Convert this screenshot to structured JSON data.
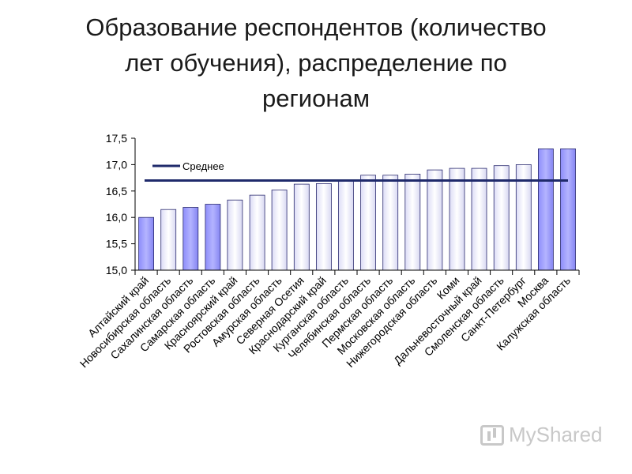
{
  "chart_data": {
    "type": "bar",
    "title": [
      "Образование респондентов (количество",
      "лет обучения), распределение по",
      "регионам"
    ],
    "categories": [
      "Алтайский край",
      "Новосибирская область",
      "Сахалинская область",
      "Самарская область",
      "Красноярский край",
      "Ростовская область",
      "Амурская область",
      "Северная Осетия",
      "Краснодарский край",
      "Курганская область",
      "Челябинская область",
      "Пермская область",
      "Московская область",
      "Нижегородская область",
      "Коми",
      "Дальневосточный край",
      "Смоленская область",
      "Санкт-Петербург",
      "Москва",
      "Калужская область"
    ],
    "values": [
      16.0,
      16.15,
      16.19,
      16.25,
      16.33,
      16.42,
      16.52,
      16.63,
      16.64,
      16.7,
      16.8,
      16.8,
      16.82,
      16.9,
      16.93,
      16.93,
      16.98,
      17.0,
      17.3,
      17.3
    ],
    "highlight": [
      true,
      false,
      true,
      true,
      false,
      false,
      false,
      false,
      false,
      false,
      false,
      false,
      false,
      false,
      false,
      false,
      false,
      false,
      true,
      true
    ],
    "average": {
      "name": "Среднее",
      "value": 16.7
    },
    "yticks": [
      "17,5",
      "17,0",
      "16,5",
      "16,0",
      "15,5",
      "15,0"
    ],
    "ytick_values": [
      17.5,
      17.0,
      16.5,
      16.0,
      15.5,
      15.0
    ],
    "ylim": [
      15.0,
      17.5
    ],
    "colors": {
      "highlight_bar": "#9999ff",
      "plain_bar": "#eeeefc",
      "average_line": "#1f2a6b",
      "axis": "#000000"
    },
    "legend_position": "top-left"
  },
  "watermark": {
    "text": "MyShared"
  }
}
